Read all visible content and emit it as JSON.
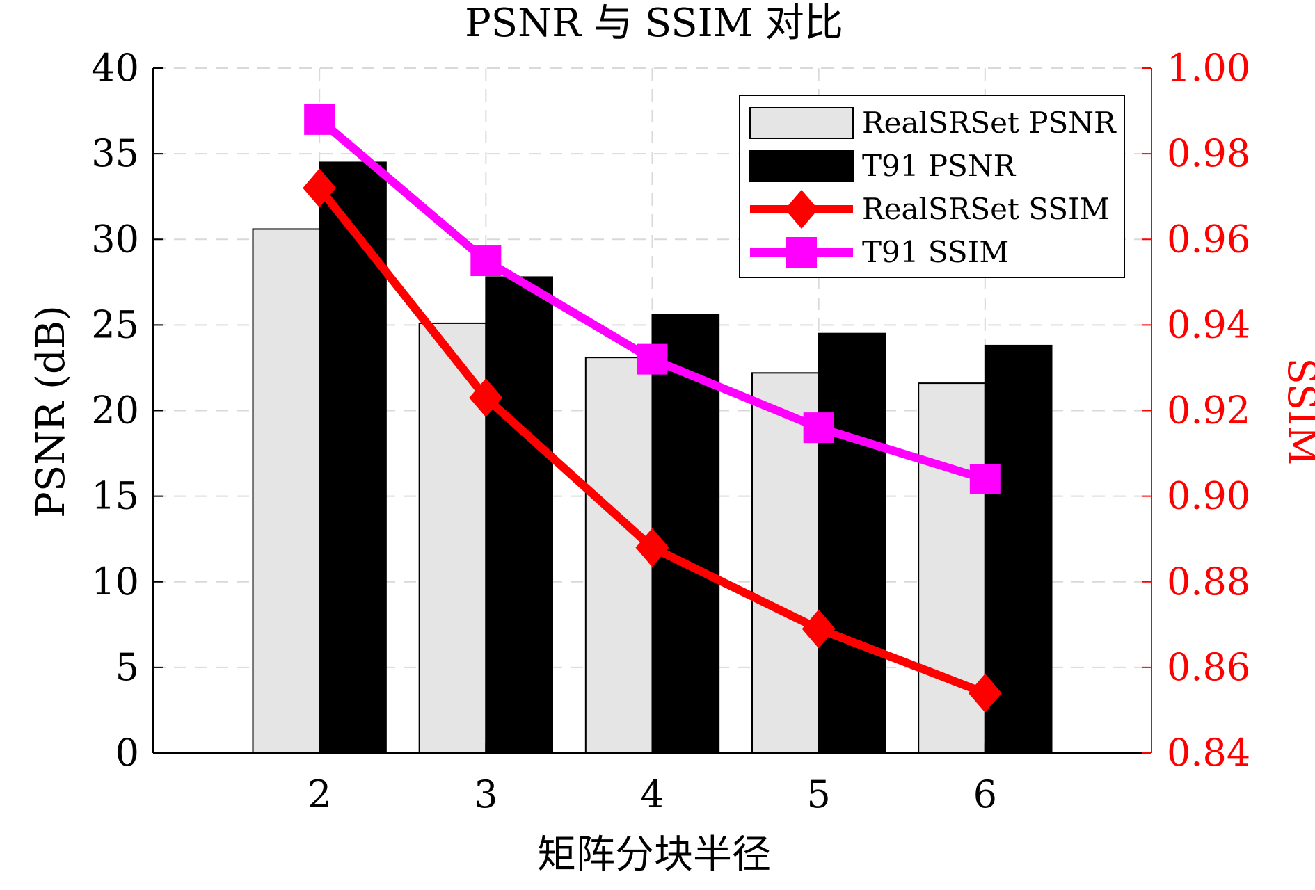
{
  "chart_data": {
    "type": "bar",
    "title": "PSNR 与 SSIM 对比",
    "xlabel": "矩阵分块半径",
    "ylabel_left": "PSNR (dB)",
    "ylabel_right": "SSIM",
    "categories": [
      "2",
      "3",
      "4",
      "5",
      "6"
    ],
    "xlim": [
      1,
      7
    ],
    "ylim_left": [
      0,
      40
    ],
    "ylim_right": [
      0.84,
      1.0
    ],
    "yticks_left": [
      "0",
      "5",
      "10",
      "15",
      "20",
      "25",
      "30",
      "35",
      "40"
    ],
    "yticks_right": [
      "0.84",
      "0.86",
      "0.88",
      "0.90",
      "0.92",
      "0.94",
      "0.96",
      "0.98",
      "1.00"
    ],
    "grid": true,
    "legend_position": "top-right",
    "bar_series": [
      {
        "name": "RealSRSet PSNR",
        "values": [
          30.6,
          25.1,
          23.1,
          22.2,
          21.6
        ],
        "color": "#e5e5e5"
      },
      {
        "name": "T91 PSNR",
        "values": [
          34.5,
          27.8,
          25.6,
          24.5,
          23.8
        ],
        "color": "#000000"
      }
    ],
    "line_series": [
      {
        "name": "RealSRSet SSIM",
        "values": [
          0.972,
          0.923,
          0.888,
          0.869,
          0.854
        ],
        "color": "#ff0000",
        "marker": "diamond"
      },
      {
        "name": "T91 SSIM",
        "values": [
          0.988,
          0.955,
          0.932,
          0.916,
          0.904
        ],
        "color": "#ff00ff",
        "marker": "square"
      }
    ],
    "colors": {
      "axis_left": "#000000",
      "axis_right": "#ff0000",
      "grid": "#d9d9d9"
    }
  }
}
